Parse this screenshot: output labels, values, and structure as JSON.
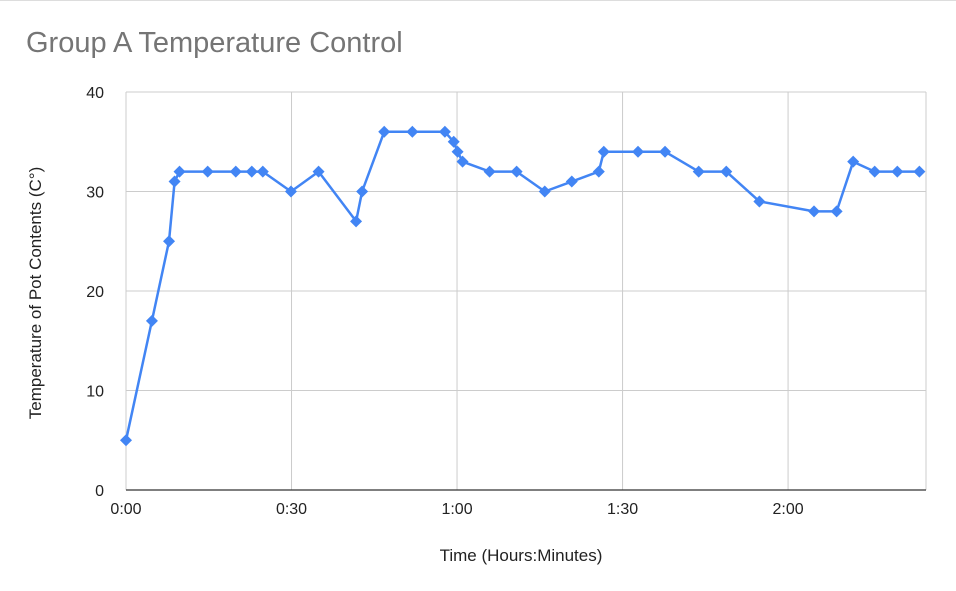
{
  "chart_data": {
    "type": "line",
    "title": "Group A Temperature Control",
    "xlabel": "Time (Hours:Minutes)",
    "ylabel": "Temperature of Pot Contents (C°)",
    "x_unit": "minutes",
    "xlim": [
      0,
      145
    ],
    "ylim": [
      0,
      40
    ],
    "x_ticks": [
      {
        "value": 0,
        "label": "0:00"
      },
      {
        "value": 30,
        "label": "0:30"
      },
      {
        "value": 60,
        "label": "1:00"
      },
      {
        "value": 90,
        "label": "1:30"
      },
      {
        "value": 120,
        "label": "2:00"
      }
    ],
    "y_ticks": [
      {
        "value": 0,
        "label": "0"
      },
      {
        "value": 10,
        "label": "10"
      },
      {
        "value": 20,
        "label": "20"
      },
      {
        "value": 30,
        "label": "30"
      },
      {
        "value": 40,
        "label": "40"
      }
    ],
    "grid": true,
    "legend": "none",
    "series": [
      {
        "color": "#4285F4",
        "marker": "diamond",
        "points": [
          [
            0,
            5
          ],
          [
            4.7,
            17
          ],
          [
            7.8,
            25
          ],
          [
            8.8,
            31
          ],
          [
            9.7,
            32
          ],
          [
            14.8,
            32
          ],
          [
            19.9,
            32
          ],
          [
            22.8,
            32
          ],
          [
            24.8,
            32
          ],
          [
            29.9,
            30
          ],
          [
            34.9,
            32
          ],
          [
            41.7,
            27
          ],
          [
            42.8,
            30
          ],
          [
            46.8,
            36
          ],
          [
            51.9,
            36
          ],
          [
            57.8,
            36
          ],
          [
            59.4,
            35
          ],
          [
            60.1,
            34
          ],
          [
            61.0,
            33
          ],
          [
            65.9,
            32
          ],
          [
            70.8,
            32
          ],
          [
            75.9,
            30
          ],
          [
            80.8,
            31
          ],
          [
            85.7,
            32
          ],
          [
            86.6,
            34
          ],
          [
            92.8,
            34
          ],
          [
            97.7,
            34
          ],
          [
            103.8,
            32
          ],
          [
            108.8,
            32
          ],
          [
            114.8,
            29
          ],
          [
            124.7,
            28
          ],
          [
            128.8,
            28
          ],
          [
            131.8,
            33
          ],
          [
            135.7,
            32
          ],
          [
            139.8,
            32
          ],
          [
            143.8,
            32
          ]
        ]
      }
    ]
  }
}
